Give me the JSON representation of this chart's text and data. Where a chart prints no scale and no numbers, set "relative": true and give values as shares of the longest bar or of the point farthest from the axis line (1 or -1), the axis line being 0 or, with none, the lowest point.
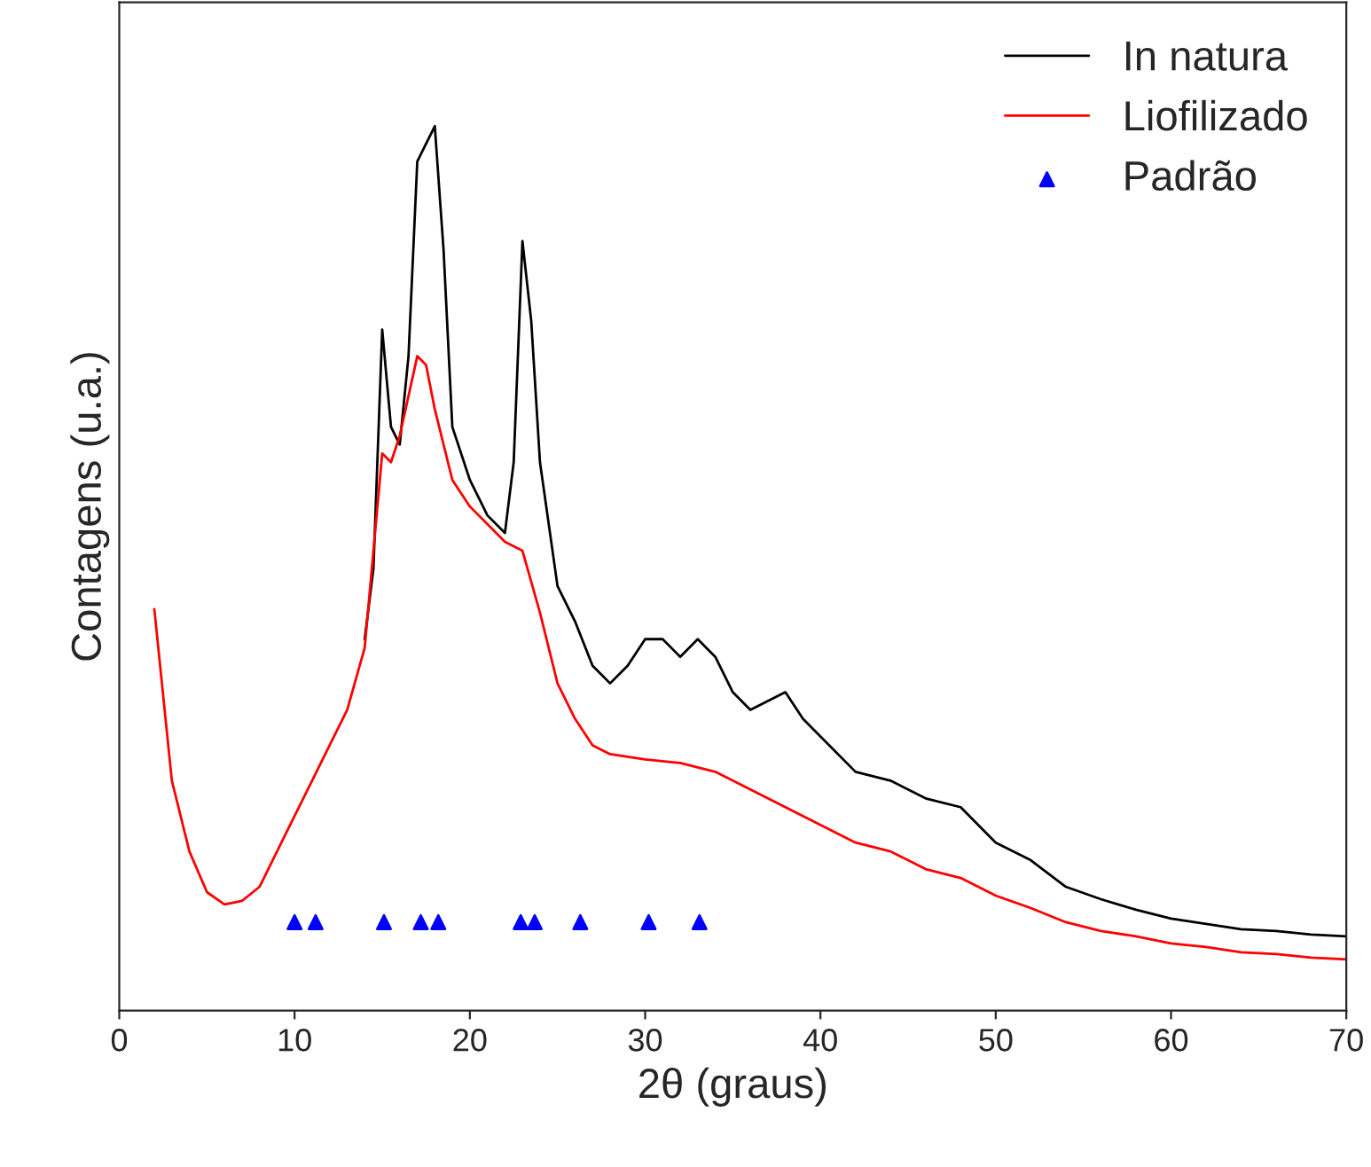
{
  "chart_data": {
    "type": "line",
    "relative": true,
    "xlabel": "2θ (graus)",
    "ylabel": "Contagens (u.a.)",
    "xlim": [
      0,
      70
    ],
    "xticks": [
      0,
      10,
      20,
      30,
      40,
      50,
      60,
      70
    ],
    "legend": "top right",
    "grid": false,
    "series": [
      {
        "name": "In natura",
        "color": "#000000",
        "x": [
          14,
          14.5,
          15,
          15.5,
          16,
          16.5,
          17,
          17.5,
          18,
          18.5,
          19,
          20,
          21,
          22,
          22.5,
          23,
          23.5,
          24,
          25,
          26,
          27,
          28,
          29,
          30,
          31,
          32,
          33,
          34,
          35,
          36,
          37,
          38,
          39,
          40,
          42,
          44,
          46,
          48,
          50,
          52,
          54,
          56,
          58,
          60,
          62,
          64,
          66,
          68,
          70
        ],
        "values": [
          0.42,
          0.5,
          0.77,
          0.66,
          0.64,
          0.74,
          0.96,
          0.98,
          1.0,
          0.86,
          0.66,
          0.6,
          0.56,
          0.54,
          0.62,
          0.87,
          0.78,
          0.62,
          0.48,
          0.44,
          0.39,
          0.37,
          0.39,
          0.42,
          0.42,
          0.4,
          0.42,
          0.4,
          0.36,
          0.34,
          0.35,
          0.36,
          0.33,
          0.31,
          0.27,
          0.26,
          0.24,
          0.23,
          0.19,
          0.17,
          0.14,
          0.126,
          0.114,
          0.104,
          0.098,
          0.092,
          0.09,
          0.086,
          0.084
        ]
      },
      {
        "name": "Liofilizado",
        "color": "#ff0000",
        "x": [
          2,
          3,
          4,
          5,
          6,
          7,
          8,
          9,
          10,
          11,
          12,
          13,
          14,
          15,
          15.5,
          16,
          17,
          17.5,
          18,
          19,
          20,
          21,
          22,
          23,
          24,
          25,
          26,
          27,
          28,
          30,
          32,
          34,
          36,
          38,
          40,
          42,
          44,
          46,
          48,
          50,
          52,
          54,
          56,
          58,
          60,
          62,
          64,
          66,
          68,
          70
        ],
        "values": [
          0.454,
          0.26,
          0.18,
          0.134,
          0.12,
          0.124,
          0.14,
          0.18,
          0.22,
          0.26,
          0.3,
          0.34,
          0.41,
          0.63,
          0.62,
          0.65,
          0.74,
          0.73,
          0.68,
          0.6,
          0.57,
          0.55,
          0.53,
          0.52,
          0.45,
          0.37,
          0.33,
          0.3,
          0.29,
          0.284,
          0.28,
          0.27,
          0.25,
          0.23,
          0.21,
          0.19,
          0.18,
          0.16,
          0.15,
          0.13,
          0.116,
          0.1,
          0.09,
          0.084,
          0.076,
          0.072,
          0.066,
          0.064,
          0.06,
          0.058
        ]
      },
      {
        "name": "Padrão",
        "type": "scatter",
        "marker": "triangle",
        "color": "#0000ff",
        "x": [
          10.0,
          11.2,
          15.1,
          17.2,
          18.2,
          22.9,
          23.7,
          26.3,
          30.2,
          33.1
        ],
        "values": [
          0.1,
          0.1,
          0.1,
          0.1,
          0.1,
          0.1,
          0.1,
          0.1,
          0.1,
          0.1
        ]
      }
    ]
  }
}
